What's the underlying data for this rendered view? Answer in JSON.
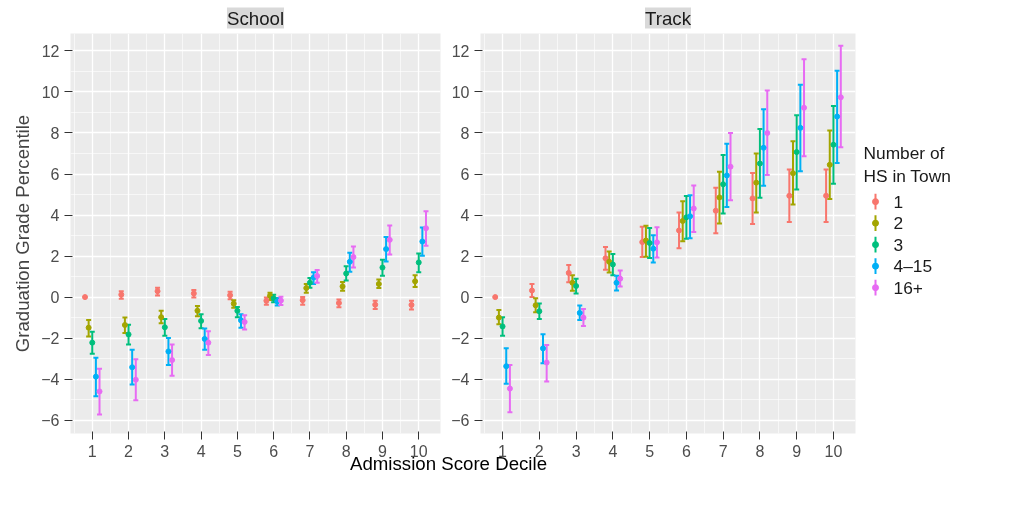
{
  "chart_data": [
    {
      "type": "scatter",
      "title": "School",
      "ylabel": "Graduation Grade Percentile",
      "xlabel": "Admission Score Decile",
      "categories": [
        "1",
        "2",
        "3",
        "4",
        "5",
        "6",
        "7",
        "8",
        "9",
        "10"
      ],
      "ylim": [
        -6.65,
        12.85
      ],
      "yticks": [
        {
          "value": -6,
          "label": "−6"
        },
        {
          "value": -4,
          "label": "−4"
        },
        {
          "value": -2,
          "label": "−2"
        },
        0,
        2,
        4,
        6,
        8,
        10,
        12
      ],
      "grid": true,
      "marker": "circle",
      "series": [
        {
          "color": "#f8766d",
          "values": [
            0,
            0.12,
            0.29,
            0.18,
            0.09,
            -0.18,
            -0.15,
            -0.29,
            -0.37,
            -0.38
          ],
          "errors": [
            null,
            [
              -0.08,
              0.29
            ],
            [
              0.08,
              0.46
            ],
            [
              -0.02,
              0.35
            ],
            [
              -0.11,
              0.26
            ],
            [
              -0.37,
              -0.02
            ],
            [
              -0.37,
              0
            ],
            [
              -0.49,
              -0.12
            ],
            [
              -0.58,
              -0.18
            ],
            [
              -0.6,
              -0.18
            ]
          ]
        },
        {
          "color": "#a3a500",
          "values": [
            -1.49,
            -1.36,
            -0.98,
            -0.66,
            -0.32,
            0.06,
            0.44,
            0.52,
            0.64,
            0.77
          ],
          "errors": [
            [
              -1.92,
              -1.12
            ],
            [
              -1.75,
              -1.0
            ],
            [
              -1.27,
              -0.67
            ],
            [
              -0.93,
              -0.43
            ],
            [
              -0.52,
              -0.15
            ],
            [
              -0.14,
              0.21
            ],
            [
              0.21,
              0.64
            ],
            [
              0.31,
              0.74
            ],
            [
              0.44,
              0.86
            ],
            [
              0.49,
              1.06
            ]
          ]
        },
        {
          "color": "#00bf7d",
          "values": [
            -2.22,
            -1.82,
            -1.47,
            -1.16,
            -0.67,
            -0.06,
            0.7,
            1.15,
            1.44,
            1.69
          ],
          "errors": [
            [
              -2.76,
              -1.69
            ],
            [
              -2.31,
              -1.35
            ],
            [
              -1.89,
              -1.07
            ],
            [
              -1.52,
              -0.84
            ],
            [
              -0.98,
              -0.48
            ],
            [
              -0.25,
              0.12
            ],
            [
              0.46,
              0.93
            ],
            [
              0.81,
              1.5
            ],
            [
              1.04,
              1.82
            ],
            [
              1.21,
              2.13
            ]
          ]
        },
        {
          "color": "#00b0f6",
          "values": [
            -3.88,
            -3.42,
            -2.65,
            -2.04,
            -1.13,
            -0.21,
            0.95,
            1.72,
            2.34,
            2.71
          ],
          "errors": [
            [
              -4.83,
              -2.96
            ],
            [
              -4.26,
              -2.57
            ],
            [
              -3.31,
              -1.99
            ],
            [
              -2.57,
              -1.53
            ],
            [
              -1.5,
              -0.84
            ],
            [
              -0.41,
              -0.05
            ],
            [
              0.64,
              1.21
            ],
            [
              1.23,
              2.16
            ],
            [
              1.73,
              2.93
            ],
            [
              2.02,
              3.39
            ]
          ]
        },
        {
          "color": "#e76bf3",
          "values": [
            -4.6,
            -4.03,
            -3.07,
            -2.22,
            -1.21,
            -0.17,
            1.03,
            1.95,
            2.79,
            3.36
          ],
          "errors": [
            [
              -5.72,
              -3.49
            ],
            [
              -5.03,
              -3.03
            ],
            [
              -3.83,
              -2.31
            ],
            [
              -2.82,
              -1.67
            ],
            [
              -1.58,
              -0.89
            ],
            [
              -0.38,
              0.02
            ],
            [
              0.7,
              1.32
            ],
            [
              1.44,
              2.47
            ],
            [
              2.08,
              3.49
            ],
            [
              2.5,
              4.18
            ]
          ]
        }
      ]
    },
    {
      "type": "scatter",
      "title": "Track",
      "legend_title": "Number of\nHS in Town",
      "categories": [
        "1",
        "2",
        "3",
        "4",
        "5",
        "6",
        "7",
        "8",
        "9",
        "10"
      ],
      "ylim": [
        -6.65,
        12.85
      ],
      "yticks": [
        {
          "value": -6,
          "label": "−6"
        },
        {
          "value": -4,
          "label": "−4"
        },
        {
          "value": -2,
          "label": "−2"
        },
        0,
        2,
        4,
        6,
        8,
        10,
        12
      ],
      "grid": true,
      "marker": "circle",
      "legend": "right",
      "series": [
        {
          "name": "1",
          "color": "#f8766d",
          "values": [
            0,
            0.32,
            1.18,
            1.89,
            2.68,
            3.25,
            4.21,
            4.81,
            4.94,
            4.94
          ],
          "errors": [
            null,
            [
              0,
              0.64
            ],
            [
              0.72,
              1.56
            ],
            [
              1.33,
              2.44
            ],
            [
              1.95,
              3.43
            ],
            [
              2.38,
              4.12
            ],
            [
              3.11,
              5.33
            ],
            [
              3.56,
              6.05
            ],
            [
              3.66,
              6.22
            ],
            [
              3.66,
              6.22
            ]
          ]
        },
        {
          "name": "2",
          "color": "#a3a500",
          "values": [
            -1.0,
            -0.4,
            0.7,
            1.72,
            2.76,
            3.71,
            4.86,
            5.58,
            6.04,
            6.45
          ],
          "errors": [
            [
              -1.33,
              -0.63
            ],
            [
              -0.74,
              -0.06
            ],
            [
              0.31,
              1.06
            ],
            [
              1.2,
              2.22
            ],
            [
              1.97,
              3.48
            ],
            [
              2.72,
              4.67
            ],
            [
              3.59,
              6.11
            ],
            [
              4.12,
              7.0
            ],
            [
              4.51,
              7.6
            ],
            [
              4.78,
              8.12
            ]
          ]
        },
        {
          "name": "3",
          "color": "#00bf7d",
          "values": [
            -1.43,
            -0.69,
            0.54,
            1.59,
            2.64,
            3.89,
            5.5,
            6.51,
            7.07,
            7.43
          ],
          "errors": [
            [
              -1.89,
              -0.98
            ],
            [
              -1.07,
              -0.31
            ],
            [
              0.18,
              0.89
            ],
            [
              1.07,
              2.1
            ],
            [
              1.9,
              3.37
            ],
            [
              2.84,
              4.93
            ],
            [
              4.08,
              6.93
            ],
            [
              4.84,
              8.19
            ],
            [
              5.25,
              8.87
            ],
            [
              5.52,
              9.32
            ]
          ]
        },
        {
          "name": "4–15",
          "color": "#00b0f6",
          "values": [
            -3.37,
            -2.5,
            -0.77,
            0.7,
            2.36,
            3.94,
            5.93,
            7.28,
            8.25,
            8.8
          ],
          "errors": [
            [
              -4.23,
              -2.5
            ],
            [
              -3.22,
              -1.81
            ],
            [
              -1.12,
              -0.41
            ],
            [
              0.32,
              1.04
            ],
            [
              1.69,
              3.02
            ],
            [
              2.87,
              4.97
            ],
            [
              4.39,
              7.47
            ],
            [
              5.43,
              9.16
            ],
            [
              6.13,
              10.35
            ],
            [
              6.54,
              11.04
            ]
          ]
        },
        {
          "name": "16+",
          "color": "#e76bf3",
          "values": [
            -4.46,
            -3.19,
            -1.0,
            0.9,
            2.67,
            4.32,
            6.36,
            8.0,
            9.23,
            9.74
          ],
          "errors": [
            [
              -5.61,
              -3.31
            ],
            [
              -4.11,
              -2.33
            ],
            [
              -1.41,
              -0.58
            ],
            [
              0.52,
              1.3
            ],
            [
              1.93,
              3.4
            ],
            [
              3.17,
              5.44
            ],
            [
              4.72,
              8.0
            ],
            [
              5.95,
              10.07
            ],
            [
              6.87,
              11.59
            ],
            [
              7.3,
              12.25
            ]
          ]
        }
      ]
    }
  ]
}
